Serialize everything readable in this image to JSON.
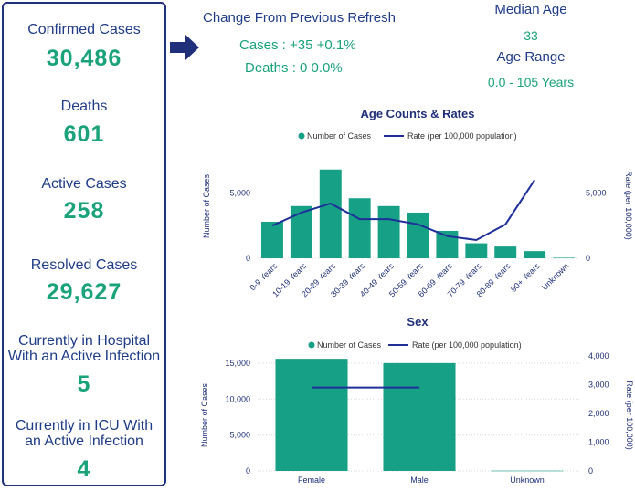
{
  "stats": [
    {
      "label": "Confirmed Cases",
      "value": "30,486"
    },
    {
      "label": "Deaths",
      "value": "601"
    },
    {
      "label": "Active Cases",
      "value": "258"
    },
    {
      "label": "Resolved Cases",
      "value": "29,627"
    },
    {
      "label_lines": [
        "Currently in Hospital",
        "With an Active Infection"
      ],
      "value": "5"
    },
    {
      "label_lines": [
        "Currently in ICU With",
        "an Active Infection"
      ],
      "value": "4"
    }
  ],
  "change": {
    "title": "Change From Previous Refresh",
    "cases": "Cases : +35 +0.1%",
    "deaths": "Deaths : 0 0.0%"
  },
  "median_age": {
    "label": "Median Age",
    "value": "33"
  },
  "age_range": {
    "label": "Age Range",
    "value": "0.0 - 105 Years"
  },
  "colors": {
    "navy": "#1f3c88",
    "teal": "#1aa37a",
    "bar": "#16a085",
    "line": "#1f2f99"
  },
  "chart_data": [
    {
      "type": "bar",
      "title": "Age Counts & Rates",
      "legend": [
        "Number of Cases",
        "Rate (per 100,000 population)"
      ],
      "categories": [
        "0-9 Years",
        "10-19 Years",
        "20-29 Years",
        "30-39 Years",
        "40-49 Years",
        "50-59 Years",
        "60-69 Years",
        "70-79 Years",
        "80-89 Years",
        "90+ Years",
        "Unknown"
      ],
      "series": [
        {
          "name": "Number of Cases",
          "axis": "left",
          "values": [
            2800,
            4000,
            6800,
            4600,
            4000,
            3500,
            2100,
            1150,
            900,
            550,
            40
          ]
        },
        {
          "name": "Rate (per 100,000 population)",
          "axis": "right",
          "values": [
            2500,
            3500,
            4200,
            3000,
            3000,
            2600,
            1700,
            1400,
            2600,
            6000,
            null
          ]
        }
      ],
      "ylabel": "Number of Cases",
      "y2label": "Rate (per 100,000)",
      "ylim": [
        0,
        10000
      ],
      "y2lim": [
        0,
        10000
      ],
      "yticks": [
        0,
        5000
      ],
      "ytick_labels": [
        "0",
        "5,000"
      ],
      "y2ticks": [
        0,
        5000
      ],
      "y2tick_labels": [
        "0",
        "5,000"
      ]
    },
    {
      "type": "bar",
      "title": "Sex",
      "legend": [
        "Number of Cases",
        "Rate (per 100,000 population)"
      ],
      "categories": [
        "Female",
        "Male",
        "Unknown"
      ],
      "series": [
        {
          "name": "Number of Cases",
          "axis": "left",
          "values": [
            15600,
            15000,
            40
          ]
        },
        {
          "name": "Rate (per 100,000 population)",
          "axis": "right",
          "values": [
            2900,
            2900,
            null
          ]
        }
      ],
      "ylabel": "Number of Cases",
      "y2label": "Rate (per 100,000)",
      "ylim": [
        0,
        16000
      ],
      "y2lim": [
        0,
        4000
      ],
      "yticks": [
        0,
        5000,
        10000,
        15000
      ],
      "ytick_labels": [
        "0",
        "5,000",
        "10,000",
        "15,000"
      ],
      "y2ticks": [
        0,
        1000,
        2000,
        3000,
        4000
      ],
      "y2tick_labels": [
        "0",
        "1,000",
        "2,000",
        "3,000",
        "4,000"
      ]
    }
  ]
}
